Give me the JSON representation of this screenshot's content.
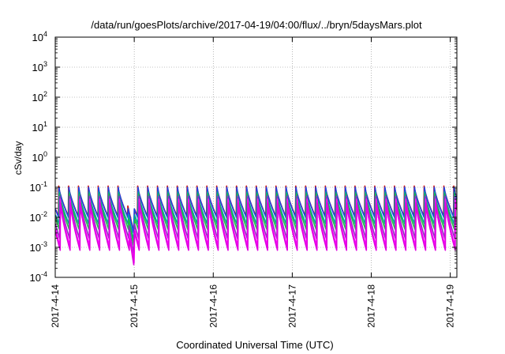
{
  "chart_data": {
    "type": "line",
    "title": "/data/run/goesPlots/archive/2017-04-19/04:00/flux/../bryn/5daysMars.plot",
    "xlabel": "Coordinated Universal Time (UTC)",
    "ylabel": "cSv/day",
    "yscale": "log",
    "ylim": [
      0.0001,
      10000
    ],
    "xlim": [
      "2017-04-14 00:00",
      "2017-04-19 02:00"
    ],
    "xticks": [
      "2017-4-14",
      "2017-4-15",
      "2017-4-16",
      "2017-4-17",
      "2017-4-18",
      "2017-4-19"
    ],
    "yticks": [
      {
        "base": "10",
        "exp": "-4",
        "value": 0.0001
      },
      {
        "base": "10",
        "exp": "-3",
        "value": 0.001
      },
      {
        "base": "10",
        "exp": "-2",
        "value": 0.01
      },
      {
        "base": "10",
        "exp": "-1",
        "value": 0.1
      },
      {
        "base": "10",
        "exp": "0",
        "value": 1
      },
      {
        "base": "10",
        "exp": "1",
        "value": 10
      },
      {
        "base": "10",
        "exp": "2",
        "value": 100
      },
      {
        "base": "10",
        "exp": "3",
        "value": 1000
      },
      {
        "base": "10",
        "exp": "4",
        "value": 10000
      }
    ],
    "grid": true,
    "pattern": {
      "description": "sawtooth repeating about every 3 hours; sharp rise to peak then decay",
      "period_hours": 3,
      "cycles": 41
    },
    "series": [
      {
        "color": "#d01010",
        "peak": 0.11,
        "trough": 0.011
      },
      {
        "color": "#2040e0",
        "peak": 0.1,
        "trough": 0.01
      },
      {
        "color": "#00a0a0",
        "peak": 0.07,
        "trough": 0.006
      },
      {
        "color": "#20c040",
        "peak": 0.06,
        "trough": 0.004
      },
      {
        "color": "#9030c0",
        "peak": 0.05,
        "trough": 0.002
      },
      {
        "color": "#ff00ff",
        "peak": 0.04,
        "trough": 0.0011
      },
      {
        "color": "#e000e0",
        "peak": 0.03,
        "trough": 0.0008
      }
    ]
  }
}
